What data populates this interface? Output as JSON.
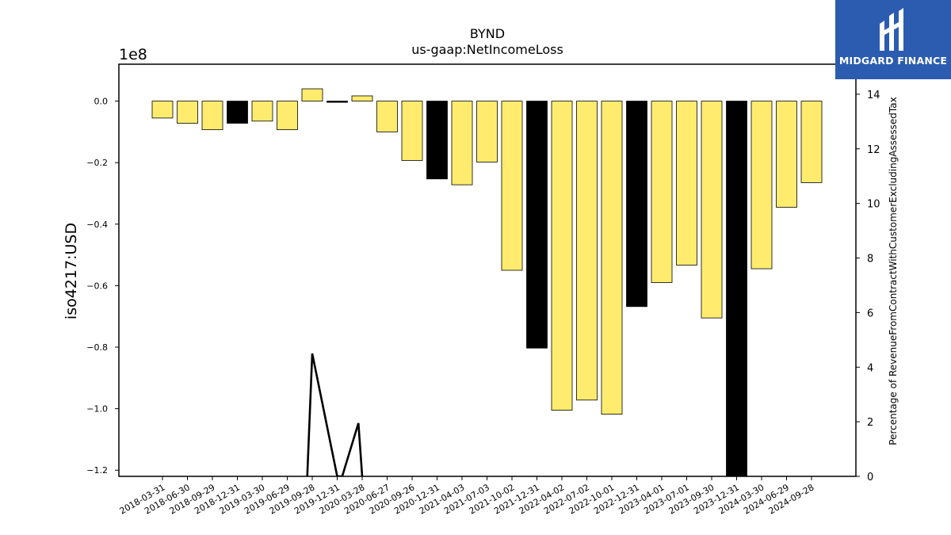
{
  "chart_data": {
    "type": "bar",
    "title": "BYND",
    "subtitle": "us-gaap:NetIncomeLoss",
    "ylabel": "iso4217:USD",
    "y2label": "Percentage of RevenueFromContractWithCustomerExcludingAssessedTax",
    "offset_text": "1e8",
    "ylim": [
      -1.22,
      0.12
    ],
    "y2lim": [
      0,
      15.1
    ],
    "yticks": [
      0.0,
      -0.2,
      -0.4,
      -0.6,
      -0.8,
      -1.0,
      -1.2
    ],
    "ytick_labels": [
      "0.0",
      "−0.2",
      "−0.4",
      "−0.6",
      "−0.8",
      "−1.0",
      "−1.2"
    ],
    "y2ticks": [
      0,
      2,
      4,
      6,
      8,
      10,
      12,
      14
    ],
    "y2tick_labels": [
      "0",
      "2",
      "4",
      "6",
      "8",
      "10",
      "12",
      "14"
    ],
    "categories": [
      "2018-03-31",
      "2018-06-30",
      "2018-09-29",
      "2018-12-31",
      "2019-03-30",
      "2019-06-29",
      "2019-09-28",
      "2019-12-31",
      "2020-03-28",
      "2020-06-27",
      "2020-09-26",
      "2020-12-31",
      "2021-04-03",
      "2021-07-03",
      "2021-10-02",
      "2021-12-31",
      "2022-04-02",
      "2022-07-02",
      "2022-10-01",
      "2022-12-31",
      "2023-04-01",
      "2023-07-01",
      "2023-09-30",
      "2023-12-31",
      "2024-03-30",
      "2024-06-29",
      "2024-09-28"
    ],
    "values": [
      -0.055,
      -0.072,
      -0.093,
      -0.072,
      -0.065,
      -0.093,
      0.04,
      -0.004,
      0.017,
      -0.1,
      -0.193,
      -0.253,
      -0.272,
      -0.198,
      -0.55,
      -0.803,
      -1.005,
      -0.972,
      -1.018,
      -0.668,
      -0.59,
      -0.533,
      -0.705,
      -1.22,
      -0.545,
      -0.345,
      -0.265
    ],
    "quarter_type": [
      "Q",
      "Q",
      "Q",
      "FY",
      "Q",
      "Q",
      "Q",
      "FY",
      "Q",
      "Q",
      "Q",
      "FY",
      "Q",
      "Q",
      "Q",
      "FY",
      "Q",
      "Q",
      "Q",
      "FY",
      "Q",
      "Q",
      "Q",
      "FY",
      "Q",
      "Q",
      "Q"
    ],
    "colors": {
      "quarter": "#ffec6e",
      "annual": "#000000",
      "edge": "#000000"
    },
    "line_series": {
      "name": "Percentage of RevenueFromContractWithCustomerExcludingAssessedTax",
      "x_index": [
        5.8,
        6.0,
        7.0,
        7.2,
        7.85,
        8.0
      ],
      "values": [
        0,
        4.5,
        0,
        0,
        1.95,
        0
      ]
    },
    "grid": false
  },
  "logo": {
    "text": "MIDGARD FINANCE",
    "color": "#2b5cb0"
  }
}
